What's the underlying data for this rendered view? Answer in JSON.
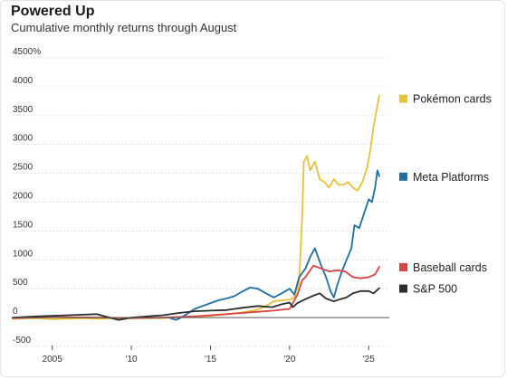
{
  "chart_data": {
    "type": "line",
    "title": "Powered Up",
    "subtitle": "Cumulative monthly returns through August",
    "xlabel": "",
    "ylabel": "",
    "xlim": [
      2002.5,
      2026.3
    ],
    "ylim": [
      -500,
      4500
    ],
    "yticks": [
      -500,
      0,
      500,
      1000,
      1500,
      2000,
      2500,
      3000,
      3500,
      4000,
      4500
    ],
    "ytick_labels": [
      "-500",
      "0",
      "500",
      "1000",
      "1500",
      "2000",
      "2500",
      "3000",
      "3500",
      "4000",
      "4500%"
    ],
    "xticks": [
      2005,
      2010,
      2015,
      2020,
      2025
    ],
    "xtick_labels": [
      "2005",
      "'10",
      "'15",
      "'20",
      "'25"
    ],
    "grid": "horizontal",
    "legend": "right, beside line ends",
    "series": [
      {
        "name": "Pokémon cards",
        "color": "#e8c13a",
        "x": [
          2002.5,
          2004,
          2005,
          2006,
          2007,
          2008,
          2009,
          2010,
          2011,
          2012,
          2013,
          2014,
          2015,
          2016,
          2017,
          2018,
          2018.5,
          2019,
          2019.5,
          2020,
          2020.3,
          2020.6,
          2020.8,
          2020.9,
          2021.1,
          2021.3,
          2021.6,
          2021.9,
          2022.2,
          2022.5,
          2022.8,
          2023.1,
          2023.4,
          2023.7,
          2024,
          2024.3,
          2024.6,
          2024.9,
          2025.1,
          2025.3,
          2025.5,
          2025.67
        ],
        "y": [
          -20,
          -10,
          -30,
          -20,
          -10,
          -20,
          -10,
          -10,
          -10,
          -10,
          10,
          20,
          30,
          60,
          90,
          140,
          200,
          280,
          300,
          310,
          350,
          600,
          1800,
          2700,
          2800,
          2550,
          2700,
          2400,
          2350,
          2250,
          2400,
          2300,
          2300,
          2350,
          2250,
          2200,
          2350,
          2600,
          2900,
          3300,
          3600,
          3850
        ]
      },
      {
        "name": "Meta Platforms",
        "color": "#1d6fa6",
        "x": [
          2012.4,
          2012.8,
          2013,
          2013.5,
          2014,
          2014.5,
          2015,
          2015.5,
          2016,
          2016.5,
          2017,
          2017.5,
          2018,
          2018.5,
          2019,
          2019.5,
          2020,
          2020.3,
          2020.6,
          2021,
          2021.3,
          2021.6,
          2021.8,
          2022,
          2022.3,
          2022.6,
          2022.8,
          2023,
          2023.3,
          2023.6,
          2023.9,
          2024.1,
          2024.4,
          2024.7,
          2025,
          2025.2,
          2025.4,
          2025.55,
          2025.67
        ],
        "y": [
          0,
          -40,
          -20,
          60,
          150,
          200,
          250,
          300,
          330,
          370,
          450,
          520,
          500,
          420,
          350,
          420,
          500,
          400,
          700,
          850,
          1050,
          1200,
          1050,
          900,
          700,
          450,
          350,
          550,
          800,
          1000,
          1200,
          1600,
          1550,
          1800,
          2050,
          2000,
          2250,
          2550,
          2450
        ]
      },
      {
        "name": "Baseball cards",
        "color": "#d84343",
        "x": [
          2002.5,
          2005,
          2008,
          2010,
          2012,
          2014,
          2016,
          2018,
          2019,
          2020,
          2020.5,
          2020.8,
          2021,
          2021.5,
          2022,
          2022.5,
          2023,
          2023.5,
          2024,
          2024.5,
          2025,
          2025.4,
          2025.67
        ],
        "y": [
          -10,
          10,
          0,
          -10,
          0,
          20,
          60,
          100,
          120,
          150,
          400,
          650,
          700,
          900,
          850,
          800,
          820,
          800,
          700,
          680,
          700,
          750,
          880
        ]
      },
      {
        "name": "S&P 500",
        "color": "#2d2d2d",
        "x": [
          2002.5,
          2004,
          2006,
          2007.8,
          2009.2,
          2010,
          2011,
          2012,
          2013,
          2014,
          2015,
          2016,
          2017,
          2018,
          2018.9,
          2019.5,
          2020,
          2020.2,
          2020.5,
          2021,
          2021.5,
          2021.9,
          2022.3,
          2022.8,
          2023.2,
          2023.6,
          2024,
          2024.5,
          2025,
          2025.3,
          2025.67
        ],
        "y": [
          0,
          20,
          40,
          60,
          -40,
          0,
          20,
          40,
          80,
          110,
          120,
          130,
          170,
          200,
          180,
          230,
          260,
          180,
          250,
          320,
          380,
          420,
          330,
          280,
          320,
          350,
          420,
          460,
          460,
          420,
          510
        ]
      }
    ]
  }
}
